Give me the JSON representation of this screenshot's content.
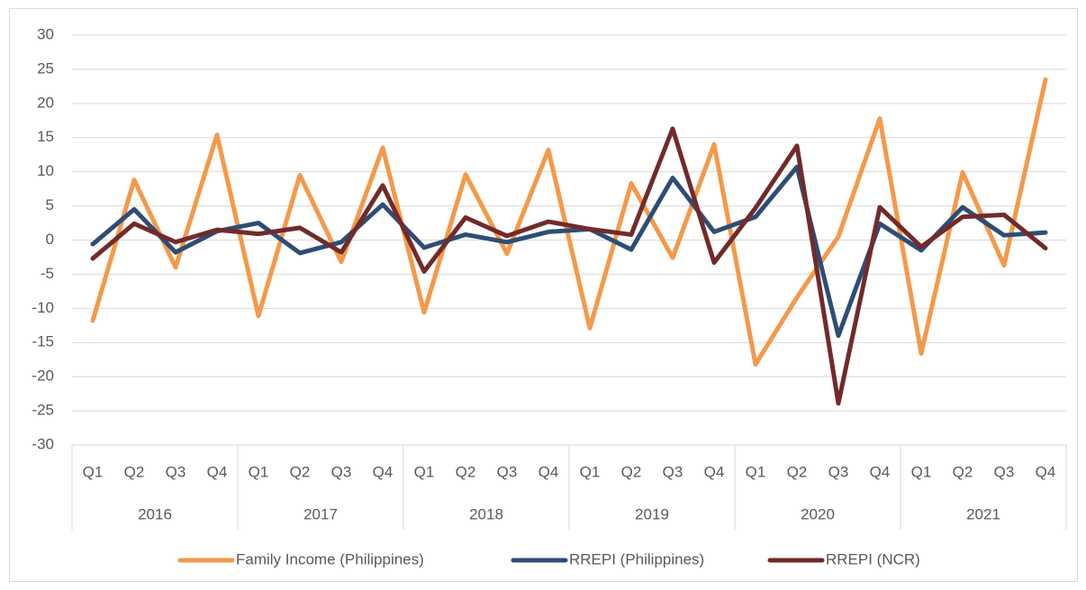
{
  "chart_data": {
    "type": "line",
    "categories": [
      "Q1",
      "Q2",
      "Q3",
      "Q4",
      "Q1",
      "Q2",
      "Q3",
      "Q4",
      "Q1",
      "Q2",
      "Q3",
      "Q4",
      "Q1",
      "Q2",
      "Q3",
      "Q4",
      "Q1",
      "Q2",
      "Q3",
      "Q4",
      "Q1",
      "Q2",
      "Q3",
      "Q4"
    ],
    "years": [
      "2016",
      "2017",
      "2018",
      "2019",
      "2020",
      "2021"
    ],
    "series": [
      {
        "name": "Family Income (Philippines)",
        "color": "#f4994a",
        "values": [
          -11.8,
          8.8,
          -4,
          15.4,
          -11.1,
          9.5,
          -3.2,
          13.5,
          -10.6,
          9.6,
          -2,
          13.2,
          -12.9,
          8.3,
          -2.6,
          14,
          -18.2,
          -8.4,
          0.5,
          17.8,
          -16.6,
          9.9,
          -3.7,
          23.5
        ]
      },
      {
        "name": "RREPI (Philippines)",
        "color": "#2e4d75",
        "values": [
          -0.6,
          4.5,
          -1.8,
          1.3,
          2.5,
          -1.9,
          -0.3,
          5.2,
          -1.1,
          0.8,
          -0.3,
          1.2,
          1.6,
          -1.4,
          9.1,
          1.2,
          3.4,
          10.7,
          -14,
          2.4,
          -1.5,
          4.8,
          0.7,
          1.1
        ]
      },
      {
        "name": "RREPI (NCR)",
        "color": "#722a2a",
        "values": [
          -2.7,
          2.4,
          -0.3,
          1.5,
          0.9,
          1.8,
          -1.8,
          8,
          -4.6,
          3.3,
          0.6,
          2.7,
          1.6,
          0.8,
          16.3,
          -3.3,
          4.7,
          13.8,
          -23.9,
          4.8,
          -1,
          3.4,
          3.7,
          -1.2
        ]
      }
    ],
    "ylim": [
      -30,
      30
    ],
    "yticks": [
      -30,
      -25,
      -20,
      -15,
      -10,
      -5,
      0,
      5,
      10,
      15,
      20,
      25,
      30
    ],
    "grid": true,
    "legend": "bottom"
  }
}
